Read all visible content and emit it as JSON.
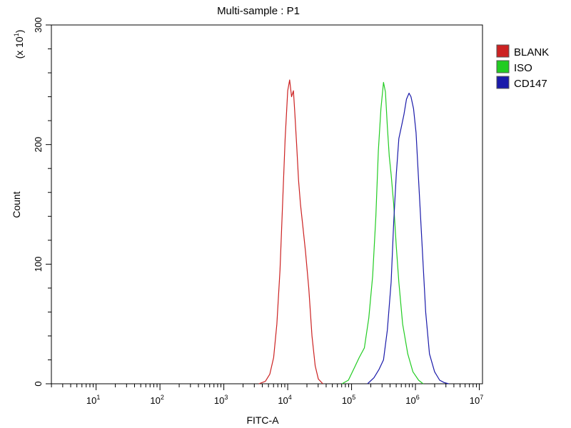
{
  "chart_data": {
    "type": "line",
    "title": "Multi-sample : P1",
    "xlabel": "FITC-A",
    "ylabel": "Count",
    "y_multiplier": "(x 10",
    "y_multiplier_exp": "1",
    "y_multiplier_close": ")",
    "x_scale": "log",
    "xlim_log10": [
      0.3,
      7.05
    ],
    "ylim": [
      0,
      300
    ],
    "grid": false,
    "legend_position": "right",
    "x_ticks": [
      {
        "base": "10",
        "exp": "1",
        "log": 1
      },
      {
        "base": "10",
        "exp": "2",
        "log": 2
      },
      {
        "base": "10",
        "exp": "3",
        "log": 3
      },
      {
        "base": "10",
        "exp": "4",
        "log": 4
      },
      {
        "base": "10",
        "exp": "5",
        "log": 5
      },
      {
        "base": "10",
        "exp": "6",
        "log": 6
      },
      {
        "base": "10",
        "exp": "7",
        "log": 7
      }
    ],
    "y_ticks": [
      {
        "label": "0",
        "value": 0
      },
      {
        "label": "100",
        "value": 100
      },
      {
        "label": "200",
        "value": 200
      },
      {
        "label": "300",
        "value": 300
      }
    ],
    "series": [
      {
        "name": "BLANK",
        "color": "#cc2222",
        "x_log10": [
          3.55,
          3.65,
          3.72,
          3.78,
          3.83,
          3.88,
          3.92,
          3.96,
          4.0,
          4.03,
          4.06,
          4.09,
          4.11,
          4.14,
          4.17,
          4.2,
          4.24,
          4.28,
          4.33,
          4.38,
          4.43,
          4.48,
          4.55
        ],
        "y": [
          0,
          2,
          8,
          22,
          50,
          95,
          150,
          205,
          245,
          254,
          240,
          245,
          228,
          200,
          170,
          150,
          130,
          110,
          80,
          40,
          15,
          4,
          0
        ]
      },
      {
        "name": "ISO",
        "color": "#22cc22",
        "x_log10": [
          4.85,
          4.95,
          5.05,
          5.12,
          5.2,
          5.27,
          5.33,
          5.38,
          5.42,
          5.46,
          5.5,
          5.53,
          5.56,
          5.59,
          5.62,
          5.66,
          5.7,
          5.74,
          5.8,
          5.88,
          5.96,
          6.05,
          6.12
        ],
        "y": [
          0,
          3,
          14,
          22,
          30,
          55,
          90,
          140,
          195,
          230,
          252,
          244,
          215,
          190,
          175,
          150,
          115,
          85,
          50,
          25,
          10,
          3,
          0
        ]
      },
      {
        "name": "CD147",
        "color": "#1a1aaa",
        "x_log10": [
          5.25,
          5.35,
          5.43,
          5.5,
          5.56,
          5.62,
          5.66,
          5.7,
          5.74,
          5.78,
          5.82,
          5.86,
          5.9,
          5.93,
          5.97,
          6.01,
          6.05,
          6.1,
          6.16,
          6.22,
          6.3,
          6.38,
          6.45,
          6.52
        ],
        "y": [
          0,
          5,
          12,
          20,
          45,
          85,
          135,
          175,
          205,
          215,
          225,
          238,
          243,
          240,
          230,
          210,
          170,
          120,
          60,
          25,
          10,
          3,
          1,
          0
        ]
      }
    ]
  }
}
